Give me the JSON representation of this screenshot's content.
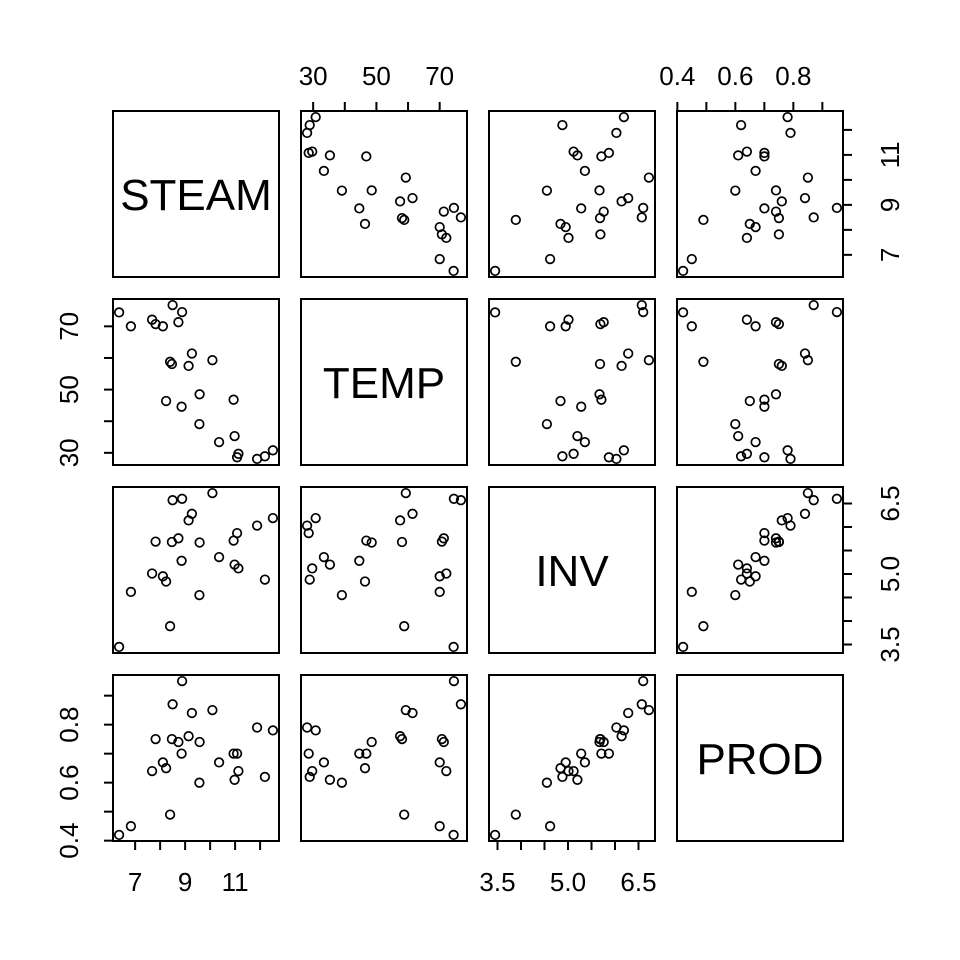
{
  "figure": {
    "background_color": "#ffffff",
    "stroke_color": "#000000",
    "point_style": "open-circle"
  },
  "chart_data": {
    "type": "scatter",
    "subtype": "scatterplot-matrix",
    "title": "",
    "grid": "off",
    "n_observations": 25,
    "variables": [
      {
        "key": "STEAM",
        "label": "STEAM",
        "axis_range": [
          6.114,
          12.756
        ],
        "ticks": [
          7,
          8,
          9,
          10,
          11,
          12
        ],
        "labeled_ticks": [
          {
            "value": 7,
            "label": "7"
          },
          {
            "value": 9,
            "label": "9"
          },
          {
            "value": 11,
            "label": "11"
          }
        ]
      },
      {
        "key": "TEMP",
        "label": "TEMP",
        "axis_range": [
          26.156,
          78.644
        ],
        "ticks": [
          30,
          40,
          50,
          60,
          70
        ],
        "labeled_ticks": [
          {
            "value": 30,
            "label": "30"
          },
          {
            "value": 50,
            "label": "50"
          },
          {
            "value": 70,
            "label": "70"
          }
        ]
      },
      {
        "key": "INV",
        "label": "INV",
        "axis_range": [
          3.3192,
          6.8508
        ],
        "ticks": [
          3.5,
          4.0,
          4.5,
          5.0,
          5.5,
          6.0,
          6.5
        ],
        "labeled_ticks": [
          {
            "value": 3.5,
            "label": "3.5"
          },
          {
            "value": 5.0,
            "label": "5.0"
          },
          {
            "value": 6.5,
            "label": "6.5"
          }
        ]
      },
      {
        "key": "PROD",
        "label": "PROD",
        "axis_range": [
          0.3988,
          0.9712
        ],
        "ticks": [
          0.4,
          0.5,
          0.6,
          0.7,
          0.8,
          0.9
        ],
        "labeled_ticks": [
          {
            "value": 0.4,
            "label": "0.4"
          },
          {
            "value": 0.6,
            "label": "0.6"
          },
          {
            "value": 0.8,
            "label": "0.8"
          }
        ]
      }
    ],
    "observation_columns": [
      "STEAM",
      "TEMP",
      "INV",
      "PROD"
    ],
    "observations": [
      [
        10.98,
        35.3,
        5.2,
        0.61
      ],
      [
        11.13,
        29.7,
        5.12,
        0.64
      ],
      [
        12.51,
        30.8,
        6.19,
        0.78
      ],
      [
        8.4,
        58.8,
        3.89,
        0.49
      ],
      [
        9.27,
        61.4,
        6.28,
        0.84
      ],
      [
        8.73,
        71.3,
        5.76,
        0.74
      ],
      [
        6.36,
        74.4,
        3.45,
        0.42
      ],
      [
        8.5,
        76.7,
        6.57,
        0.87
      ],
      [
        7.82,
        70.7,
        5.69,
        0.75
      ],
      [
        9.14,
        57.5,
        6.14,
        0.76
      ],
      [
        8.24,
        46.4,
        4.84,
        0.65
      ],
      [
        12.19,
        28.9,
        4.88,
        0.62
      ],
      [
        11.88,
        28.1,
        6.03,
        0.79
      ],
      [
        9.57,
        39.1,
        4.55,
        0.6
      ],
      [
        10.94,
        46.8,
        5.71,
        0.7
      ],
      [
        9.58,
        48.5,
        5.67,
        0.74
      ],
      [
        10.09,
        59.3,
        6.72,
        0.85
      ],
      [
        8.11,
        70.0,
        4.95,
        0.67
      ],
      [
        6.83,
        70.0,
        4.62,
        0.45
      ],
      [
        8.88,
        74.5,
        6.6,
        0.95
      ],
      [
        7.68,
        72.1,
        5.01,
        0.64
      ],
      [
        8.47,
        58.1,
        5.68,
        0.75
      ],
      [
        8.86,
        44.6,
        5.28,
        0.7
      ],
      [
        10.36,
        33.4,
        5.36,
        0.67
      ],
      [
        11.08,
        28.6,
        5.87,
        0.7
      ]
    ]
  }
}
